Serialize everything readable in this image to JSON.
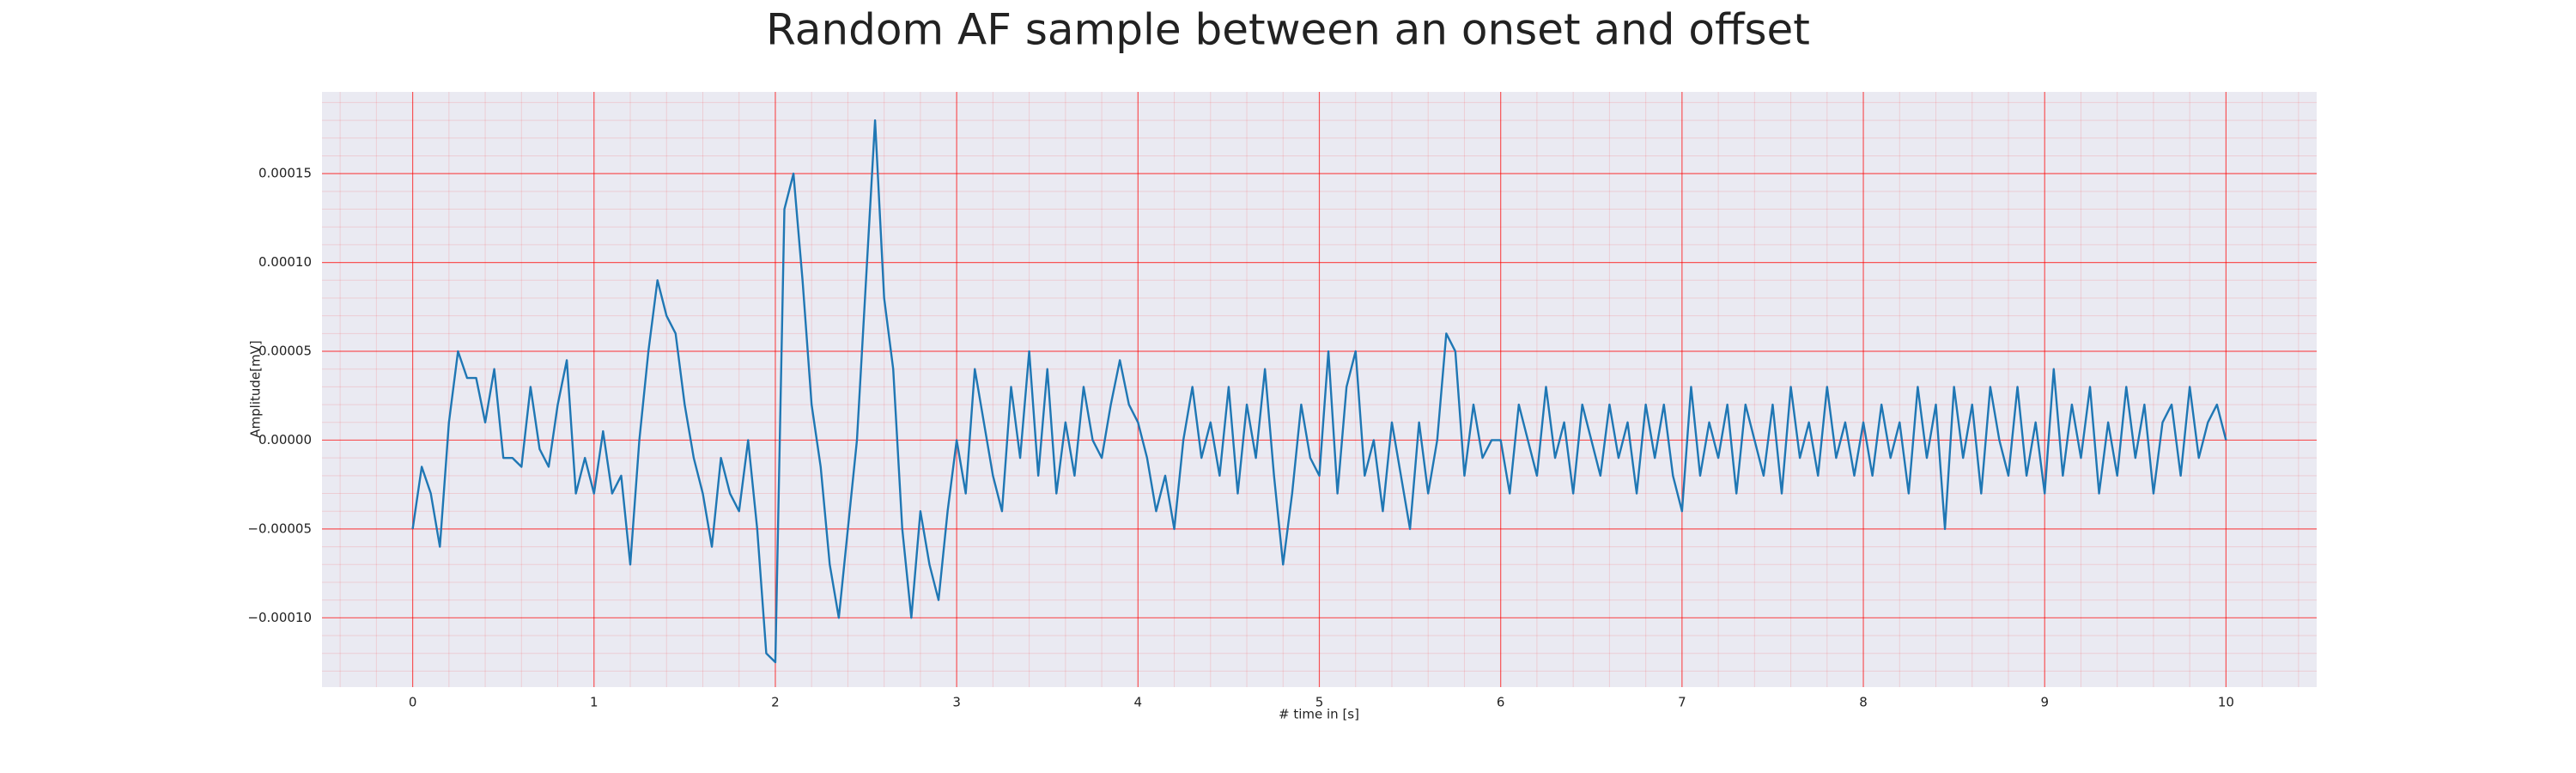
{
  "chart_data": {
    "type": "line",
    "title": "Random AF sample between an onset and offset",
    "xlabel": "# time in [s]",
    "ylabel": "Amplitude[mV]",
    "x": [
      0,
      0.05,
      0.1,
      0.15,
      0.2,
      0.25,
      0.3,
      0.35,
      0.4,
      0.45,
      0.5,
      0.55,
      0.6,
      0.65,
      0.7,
      0.75,
      0.8,
      0.85,
      0.9,
      0.95,
      1,
      1.05,
      1.1,
      1.15,
      1.2,
      1.25,
      1.3,
      1.35,
      1.4,
      1.45,
      1.5,
      1.55,
      1.6,
      1.65,
      1.7,
      1.75,
      1.8,
      1.85,
      1.9,
      1.95,
      2,
      2.05,
      2.1,
      2.15,
      2.2,
      2.25,
      2.3,
      2.35,
      2.4,
      2.45,
      2.5,
      2.55,
      2.6,
      2.65,
      2.7,
      2.75,
      2.8,
      2.85,
      2.9,
      2.95,
      3,
      3.05,
      3.1,
      3.15,
      3.2,
      3.25,
      3.3,
      3.35,
      3.4,
      3.45,
      3.5,
      3.55,
      3.6,
      3.65,
      3.7,
      3.75,
      3.8,
      3.85,
      3.9,
      3.95,
      4,
      4.05,
      4.1,
      4.15,
      4.2,
      4.25,
      4.3,
      4.35,
      4.4,
      4.45,
      4.5,
      4.55,
      4.6,
      4.65,
      4.7,
      4.75,
      4.8,
      4.85,
      4.9,
      4.95,
      5,
      5.05,
      5.1,
      5.15,
      5.2,
      5.25,
      5.3,
      5.35,
      5.4,
      5.45,
      5.5,
      5.55,
      5.6,
      5.65,
      5.7,
      5.75,
      5.8,
      5.85,
      5.9,
      5.95,
      6,
      6.05,
      6.1,
      6.15,
      6.2,
      6.25,
      6.3,
      6.35,
      6.4,
      6.45,
      6.5,
      6.55,
      6.6,
      6.65,
      6.7,
      6.75,
      6.8,
      6.85,
      6.9,
      6.95,
      7,
      7.05,
      7.1,
      7.15,
      7.2,
      7.25,
      7.3,
      7.35,
      7.4,
      7.45,
      7.5,
      7.55,
      7.6,
      7.65,
      7.7,
      7.75,
      7.8,
      7.85,
      7.9,
      7.95,
      8,
      8.05,
      8.1,
      8.15,
      8.2,
      8.25,
      8.3,
      8.35,
      8.4,
      8.45,
      8.5,
      8.55,
      8.6,
      8.65,
      8.7,
      8.75,
      8.8,
      8.85,
      8.9,
      8.95,
      9,
      9.05,
      9.1,
      9.15,
      9.2,
      9.25,
      9.3,
      9.35,
      9.4,
      9.45,
      9.5,
      9.55,
      9.6,
      9.65,
      9.7,
      9.75,
      9.8,
      9.85,
      9.9,
      9.95,
      10
    ],
    "series": [
      {
        "color": "#1f77b4",
        "values": [
          -5e-05,
          -1.5e-05,
          -3e-05,
          -6e-05,
          1e-05,
          5e-05,
          3.5e-05,
          3.5e-05,
          1e-05,
          4e-05,
          -1e-05,
          -1e-05,
          -1.5e-05,
          3e-05,
          -5e-06,
          -1.5e-05,
          2e-05,
          4.5e-05,
          -3e-05,
          -1e-05,
          -3e-05,
          5e-06,
          -3e-05,
          -2e-05,
          -7e-05,
          0,
          5e-05,
          9e-05,
          7e-05,
          6e-05,
          2e-05,
          -1e-05,
          -3e-05,
          -6e-05,
          -1e-05,
          -3e-05,
          -4e-05,
          0,
          -5e-05,
          -0.00012,
          -0.000125,
          0.00013,
          0.00015,
          9e-05,
          2e-05,
          -1.5e-05,
          -7e-05,
          -0.0001,
          -5e-05,
          0,
          9e-05,
          0.00018,
          8e-05,
          4e-05,
          -5e-05,
          -0.0001,
          -4e-05,
          -7e-05,
          -9e-05,
          -4e-05,
          0,
          -3e-05,
          4e-05,
          1e-05,
          -2e-05,
          -4e-05,
          3e-05,
          -1e-05,
          5e-05,
          -2e-05,
          4e-05,
          -3e-05,
          1e-05,
          -2e-05,
          3e-05,
          0,
          -1e-05,
          2e-05,
          4.5e-05,
          2e-05,
          1e-05,
          -1e-05,
          -4e-05,
          -2e-05,
          -5e-05,
          0,
          3e-05,
          -1e-05,
          1e-05,
          -2e-05,
          3e-05,
          -3e-05,
          2e-05,
          -1e-05,
          4e-05,
          -2e-05,
          -7e-05,
          -3e-05,
          2e-05,
          -1e-05,
          -2e-05,
          5e-05,
          -3e-05,
          3e-05,
          5e-05,
          -2e-05,
          0,
          -4e-05,
          1e-05,
          -2e-05,
          -5e-05,
          1e-05,
          -3e-05,
          0,
          6e-05,
          5e-05,
          -2e-05,
          2e-05,
          -1e-05,
          0,
          0,
          -3e-05,
          2e-05,
          0,
          -2e-05,
          3e-05,
          -1e-05,
          1e-05,
          -3e-05,
          2e-05,
          0,
          -2e-05,
          2e-05,
          -1e-05,
          1e-05,
          -3e-05,
          2e-05,
          -1e-05,
          2e-05,
          -2e-05,
          -4e-05,
          3e-05,
          -2e-05,
          1e-05,
          -1e-05,
          2e-05,
          -3e-05,
          2e-05,
          0,
          -2e-05,
          2e-05,
          -3e-05,
          3e-05,
          -1e-05,
          1e-05,
          -2e-05,
          3e-05,
          -1e-05,
          1e-05,
          -2e-05,
          1e-05,
          -2e-05,
          2e-05,
          -1e-05,
          1e-05,
          -3e-05,
          3e-05,
          -1e-05,
          2e-05,
          -5e-05,
          3e-05,
          -1e-05,
          2e-05,
          -3e-05,
          3e-05,
          0,
          -2e-05,
          3e-05,
          -2e-05,
          1e-05,
          -3e-05,
          4e-05,
          -2e-05,
          2e-05,
          -1e-05,
          3e-05,
          -3e-05,
          1e-05,
          -2e-05,
          3e-05,
          -1e-05,
          2e-05,
          -3e-05,
          1e-05,
          2e-05,
          -2e-05,
          3e-05,
          -1e-05,
          1e-05,
          2e-05,
          0
        ]
      }
    ],
    "xlim": [
      -0.5,
      10.5
    ],
    "ylim": [
      -0.000139,
      0.000196
    ],
    "xticks": [
      0,
      1,
      2,
      3,
      4,
      5,
      6,
      7,
      8,
      9,
      10
    ],
    "yticks": [
      {
        "value": -0.0001,
        "label": "−0.00010"
      },
      {
        "value": -5e-05,
        "label": "−0.00005"
      },
      {
        "value": 0,
        "label": "0.00000"
      },
      5e-05,
      {
        "value": 0.0001,
        "label": "0.00010"
      },
      0.00015
    ],
    "grid": true,
    "grid_color": "#ff0000",
    "background": "#eaeaf2"
  }
}
